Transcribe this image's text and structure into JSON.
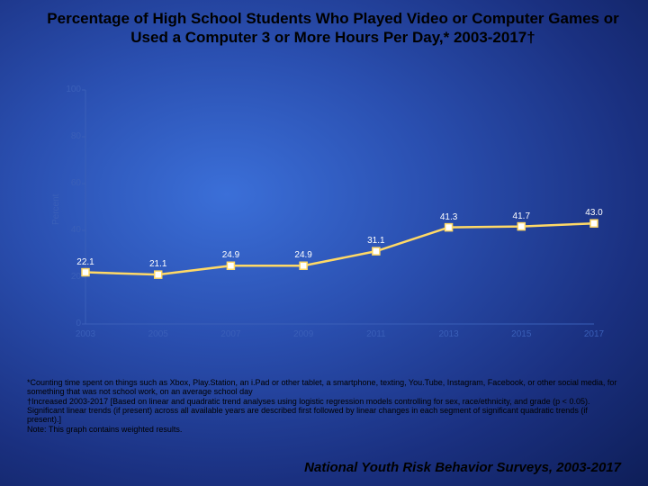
{
  "title": "Percentage of High School Students Who Played Video or Computer Games or Used a Computer 3 or More Hours Per Day,* 2003-2017†",
  "title_fontsize": 17,
  "title_color": "#000000",
  "background_gradient": [
    "#3b6fd8",
    "#1a3080",
    "#0e1e58"
  ],
  "chart": {
    "type": "line",
    "xlabel": "",
    "ylabel": "Percent",
    "ylabel_fontsize": 10,
    "ylabel_color": "#3a5fb8",
    "ylim": [
      0,
      100
    ],
    "ytick_step": 20,
    "yticks": [
      0,
      20,
      40,
      60,
      80,
      100
    ],
    "tick_fontsize": 10,
    "tick_color": "#3a5fb8",
    "categories": [
      "2003",
      "2005",
      "2007",
      "2009",
      "2011",
      "2013",
      "2015",
      "2017"
    ],
    "values": [
      22.1,
      21.1,
      24.9,
      24.9,
      31.1,
      41.3,
      41.7,
      43.0
    ],
    "line_color": "#ffd966",
    "line_width": 2.5,
    "marker_style": "square",
    "marker_size": 8,
    "marker_fill": "#ffffff",
    "marker_stroke": "#ffd966",
    "point_label_color": "#ffffff",
    "point_label_fontsize": 10,
    "axis_color": "#3a5fb8",
    "plot_bg": "transparent"
  },
  "footnotes": [
    "*Counting time spent on things such as Xbox, Play.Station, an i.Pad or other tablet, a smartphone, texting, You.Tube, Instagram, Facebook, or other social media, for something that was not school work, on an average school day",
    "†Increased 2003-2017 [Based on linear and quadratic trend analyses using logistic regression models controlling for sex, race/ethnicity, and grade (p < 0.05). Significant linear trends (if present) across all available years are described first followed by linear changes in each segment of significant quadratic trends (if present).]",
    "Note: This graph contains weighted results."
  ],
  "footnote_fontsize": 9,
  "footnote_color": "#000000",
  "source": "National Youth Risk Behavior Surveys, 2003-2017",
  "source_fontsize": 15,
  "source_color": "#000000"
}
